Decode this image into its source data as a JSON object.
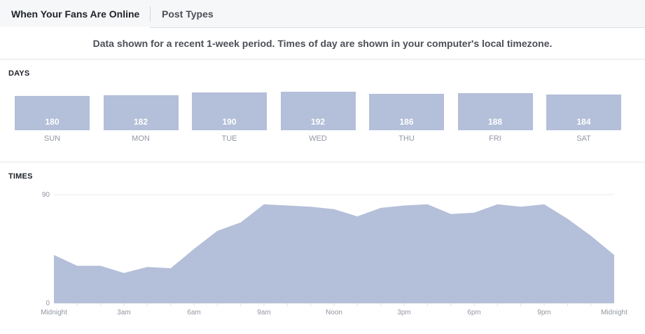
{
  "tabs": [
    {
      "label": "When Your Fans Are Online",
      "active": true
    },
    {
      "label": "Post Types",
      "active": false
    }
  ],
  "notice": "Data shown for a recent 1-week period. Times of day are shown in your computer's local timezone.",
  "colors": {
    "bar": "#b4bfd9",
    "area": "#b4bfd9",
    "grid": "#e9ebee",
    "axis_text": "#9197a3"
  },
  "chart_data": [
    {
      "type": "bar",
      "title": "DAYS",
      "categories": [
        "SUN",
        "MON",
        "TUE",
        "WED",
        "THU",
        "FRI",
        "SAT"
      ],
      "values": [
        180,
        182,
        190,
        192,
        186,
        188,
        184
      ]
    },
    {
      "type": "area",
      "title": "TIMES",
      "x": [
        0,
        1,
        2,
        3,
        4,
        5,
        6,
        7,
        8,
        9,
        10,
        11,
        12,
        13,
        14,
        15,
        16,
        17,
        18,
        19,
        20,
        21,
        22,
        23,
        24
      ],
      "values": [
        40,
        31,
        31,
        25,
        30,
        29,
        45,
        60,
        67,
        82,
        81,
        80,
        78,
        72,
        79,
        81,
        82,
        74,
        75,
        82,
        80,
        82,
        70,
        56,
        40
      ],
      "ylim": [
        0,
        90
      ],
      "yticks": [
        "0",
        "90"
      ],
      "xtick_labels": [
        "Midnight",
        "3am",
        "6am",
        "9am",
        "Noon",
        "3pm",
        "6pm",
        "9pm",
        "Midnight"
      ],
      "xtick_hours": [
        0,
        3,
        6,
        9,
        12,
        15,
        18,
        21,
        24
      ]
    }
  ]
}
